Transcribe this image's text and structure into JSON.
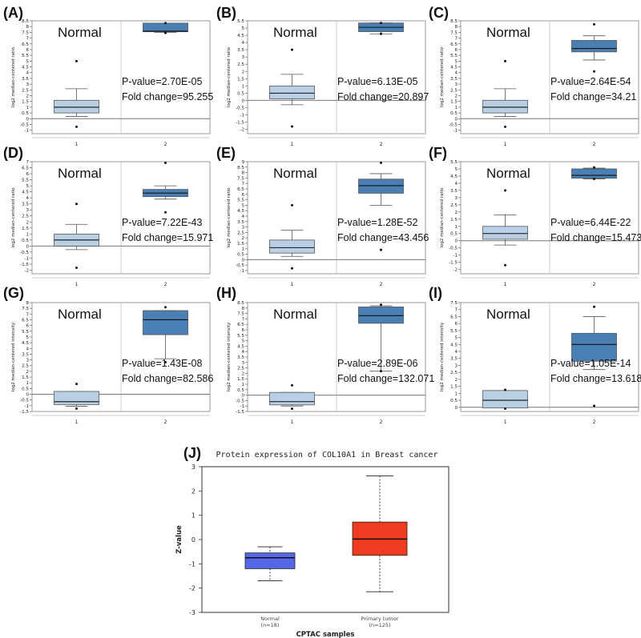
{
  "colors": {
    "normal_box": "#b9cfe4",
    "tumor_box": "#4a7fb4",
    "frame": "#9a9a9a",
    "zero_line": "#777777",
    "j_normal": "#5566e6",
    "j_tumor": "#ef3b1f",
    "text": "#111111"
  },
  "chart_data": [
    {
      "panel": "(A)",
      "type": "box",
      "ylabel": "log2 median-centered ratio",
      "ylim": [
        -1.3,
        8.5
      ],
      "yticks": [
        -1.0,
        -0.5,
        0.0,
        0.5,
        1.0,
        1.5,
        2.0,
        2.5,
        3.0,
        3.5,
        4.0,
        4.5,
        5.0,
        5.5,
        6.0,
        6.5,
        7.0,
        7.5,
        8.0,
        8.5
      ],
      "categories": [
        "1",
        "2"
      ],
      "group_label": "Normal",
      "annotations": [
        "P-value=2.70E-05",
        "Fold change=95.255"
      ],
      "boxes": [
        {
          "whislo": 0.2,
          "q1": 0.5,
          "med": 1.0,
          "q3": 1.6,
          "whishi": 2.6,
          "fliers": [
            5.0,
            -0.7
          ]
        },
        {
          "whislo": 7.5,
          "q1": 7.55,
          "med": 7.6,
          "q3": 8.3,
          "whishi": 8.3,
          "fliers": [
            8.3,
            7.45
          ]
        }
      ]
    },
    {
      "panel": "(B)",
      "type": "box",
      "ylabel": "log2 median-centered ratio",
      "ylim": [
        -2.3,
        5.5
      ],
      "yticks": [
        -2.0,
        -1.5,
        -1.0,
        -0.5,
        0.0,
        0.5,
        1.0,
        1.5,
        2.0,
        2.5,
        3.0,
        3.5,
        4.0,
        4.5,
        5.0,
        5.5
      ],
      "categories": [
        "1",
        "2"
      ],
      "group_label": "Normal",
      "annotations": [
        "P-value=6.13E-05",
        "Fold change=20.897"
      ],
      "boxes": [
        {
          "whislo": -0.3,
          "q1": 0.1,
          "med": 0.5,
          "q3": 1.0,
          "whishi": 1.8,
          "fliers": [
            3.5,
            -1.8
          ]
        },
        {
          "whislo": 4.6,
          "q1": 4.75,
          "med": 5.05,
          "q3": 5.35,
          "whishi": 5.35,
          "fliers": [
            5.35,
            4.6
          ]
        }
      ]
    },
    {
      "panel": "(C)",
      "type": "box",
      "ylabel": "log2 median-centered ratio",
      "ylim": [
        -1.3,
        8.5
      ],
      "yticks": [
        -1.0,
        -0.5,
        0.0,
        0.5,
        1.0,
        1.5,
        2.0,
        2.5,
        3.0,
        3.5,
        4.0,
        4.5,
        5.0,
        5.5,
        6.0,
        6.5,
        7.0,
        7.5,
        8.0,
        8.5
      ],
      "categories": [
        "1",
        "2"
      ],
      "group_label": "Normal",
      "annotations": [
        "P-value=2.64E-54",
        "Fold change=34.21"
      ],
      "boxes": [
        {
          "whislo": 0.2,
          "q1": 0.5,
          "med": 1.0,
          "q3": 1.6,
          "whishi": 2.6,
          "fliers": [
            5.0,
            -0.7
          ]
        },
        {
          "whislo": 5.1,
          "q1": 5.8,
          "med": 6.1,
          "q3": 6.8,
          "whishi": 7.2,
          "fliers": [
            8.2,
            4.1
          ]
        }
      ]
    },
    {
      "panel": "(D)",
      "type": "box",
      "ylabel": "log2 median-centered ratio",
      "ylim": [
        -2.3,
        7.0
      ],
      "yticks": [
        -2.0,
        -1.5,
        -1.0,
        -0.5,
        0.0,
        0.5,
        1.0,
        1.5,
        2.0,
        2.5,
        3.0,
        3.5,
        4.0,
        4.5,
        5.0,
        5.5,
        6.0,
        6.5,
        7.0
      ],
      "categories": [
        "1",
        "2"
      ],
      "group_label": "Normal",
      "annotations": [
        "P-value=7.22E-43",
        "Fold change=15.971"
      ],
      "boxes": [
        {
          "whislo": -0.3,
          "q1": 0.0,
          "med": 0.5,
          "q3": 1.0,
          "whishi": 1.8,
          "fliers": [
            3.5,
            -1.8
          ]
        },
        {
          "whislo": 3.9,
          "q1": 4.1,
          "med": 4.4,
          "q3": 4.7,
          "whishi": 5.0,
          "fliers": [
            6.9,
            2.8
          ]
        }
      ]
    },
    {
      "panel": "(E)",
      "type": "box",
      "ylabel": "log2 median-centered ratio",
      "ylim": [
        -1.3,
        9.0
      ],
      "yticks": [
        -1.0,
        -0.5,
        0.0,
        0.5,
        1.0,
        1.5,
        2.0,
        2.5,
        3.0,
        3.5,
        4.0,
        4.5,
        5.0,
        5.5,
        6.0,
        6.5,
        7.0,
        7.5,
        8.0,
        8.5,
        9.0
      ],
      "categories": [
        "1",
        "2"
      ],
      "group_label": "Normal",
      "annotations": [
        "P-value=1.28E-52",
        "Fold change=43.456"
      ],
      "boxes": [
        {
          "whislo": 0.3,
          "q1": 0.6,
          "med": 1.1,
          "q3": 1.8,
          "whishi": 2.7,
          "fliers": [
            5.0,
            -0.8
          ]
        },
        {
          "whislo": 5.0,
          "q1": 6.1,
          "med": 6.8,
          "q3": 7.4,
          "whishi": 7.9,
          "fliers": [
            8.9,
            0.9
          ]
        }
      ]
    },
    {
      "panel": "(F)",
      "type": "box",
      "ylabel": "log2 median-centered ratio",
      "ylim": [
        -2.3,
        5.5
      ],
      "yticks": [
        -2.0,
        -1.5,
        -1.0,
        -0.5,
        0.0,
        0.5,
        1.0,
        1.5,
        2.0,
        2.5,
        3.0,
        3.5,
        4.0,
        4.5,
        5.0,
        5.5
      ],
      "categories": [
        "1",
        "2"
      ],
      "group_label": "Normal",
      "annotations": [
        "P-value=6.44E-22",
        "Fold change=15.473"
      ],
      "boxes": [
        {
          "whislo": -0.3,
          "q1": 0.1,
          "med": 0.5,
          "q3": 1.0,
          "whishi": 1.8,
          "fliers": [
            3.5,
            -1.7
          ]
        },
        {
          "whislo": 4.3,
          "q1": 4.35,
          "med": 4.55,
          "q3": 5.0,
          "whishi": 5.05,
          "fliers": [
            5.1,
            4.3
          ]
        }
      ]
    },
    {
      "panel": "(G)",
      "type": "box",
      "ylabel": "log2 median-centered intensity",
      "ylim": [
        -1.5,
        8.0
      ],
      "yticks": [
        -1.5,
        -1.0,
        -0.5,
        0.0,
        0.5,
        1.0,
        1.5,
        2.0,
        2.5,
        3.0,
        3.5,
        4.0,
        4.5,
        5.0,
        5.5,
        6.0,
        6.5,
        7.0,
        7.5,
        8.0
      ],
      "categories": [
        "1",
        "2"
      ],
      "group_label": "Normal",
      "annotations": [
        "P-value=1.43E-08",
        "Fold change=82.586"
      ],
      "boxes": [
        {
          "whislo": -1.05,
          "q1": -0.9,
          "med": -0.65,
          "q3": 0.25,
          "whishi": 0.25,
          "fliers": [
            0.9,
            -1.25
          ]
        },
        {
          "whislo": 3.1,
          "q1": 5.2,
          "med": 6.5,
          "q3": 7.3,
          "whishi": 7.3,
          "fliers": [
            7.6,
            2.8
          ]
        }
      ]
    },
    {
      "panel": "(H)",
      "type": "box",
      "ylabel": "log2 median-centered intensity",
      "ylim": [
        -1.5,
        8.5
      ],
      "yticks": [
        -1.5,
        -1.0,
        -0.5,
        0.0,
        0.5,
        1.0,
        1.5,
        2.0,
        2.5,
        3.0,
        3.5,
        4.0,
        4.5,
        5.0,
        5.5,
        6.0,
        6.5,
        7.0,
        7.5,
        8.0,
        8.5
      ],
      "categories": [
        "1",
        "2"
      ],
      "group_label": "Normal",
      "annotations": [
        "P-value=2.89E-06",
        "Fold change=132.071"
      ],
      "boxes": [
        {
          "whislo": -1.0,
          "q1": -0.9,
          "med": -0.6,
          "q3": 0.25,
          "whishi": 0.25,
          "fliers": [
            0.9,
            -1.25
          ]
        },
        {
          "whislo": 2.2,
          "q1": 6.6,
          "med": 7.3,
          "q3": 8.1,
          "whishi": 8.2,
          "fliers": [
            8.3,
            2.2
          ]
        }
      ]
    },
    {
      "panel": "(I)",
      "type": "box",
      "ylabel": "log2 median-centered intensity",
      "ylim": [
        -0.3,
        7.5
      ],
      "yticks": [
        0.0,
        0.5,
        1.0,
        1.5,
        2.0,
        2.5,
        3.0,
        3.5,
        4.0,
        4.5,
        5.0,
        5.5,
        6.0,
        6.5,
        7.0,
        7.5
      ],
      "categories": [
        "1",
        "2"
      ],
      "group_label": "Normal",
      "annotations": [
        "P-value=1.05E-14",
        "Fold change=13.618"
      ],
      "boxes": [
        {
          "whislo": -0.05,
          "q1": -0.05,
          "med": 0.5,
          "q3": 1.2,
          "whishi": 1.2,
          "fliers": [
            1.25,
            -0.1
          ]
        },
        {
          "whislo": 2.7,
          "q1": 3.3,
          "med": 4.5,
          "q3": 5.3,
          "whishi": 6.5,
          "fliers": [
            7.2,
            0.1
          ]
        }
      ]
    },
    {
      "panel": "(J)",
      "type": "box",
      "title": "Protein expression of COL10A1 in Breast cancer",
      "xlabel": "CPTAC samples",
      "ylabel": "Z-value",
      "ylim": [
        -3,
        3
      ],
      "yticks": [
        -3,
        -2,
        -1,
        0,
        1,
        2,
        3
      ],
      "categories": [
        "Normal",
        "Primary tumor"
      ],
      "n_labels": [
        "(n=18)",
        "(n=125)"
      ],
      "boxes": [
        {
          "whislo": -1.7,
          "q1": -1.2,
          "med": -0.75,
          "q3": -0.55,
          "whishi": -0.3
        },
        {
          "whislo": -2.15,
          "q1": -0.65,
          "med": 0.02,
          "q3": 0.72,
          "whishi": 2.62
        }
      ]
    }
  ]
}
